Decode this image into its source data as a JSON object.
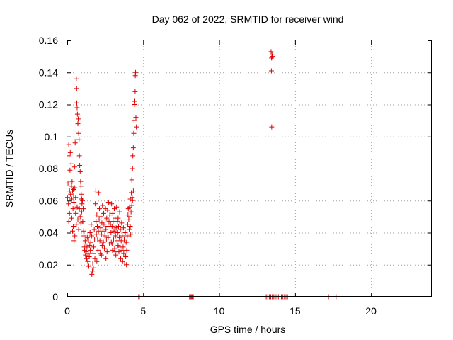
{
  "chart_data": {
    "type": "scatter",
    "title": "Day 062 of 2022, SRMTID for receiver wind",
    "xlabel": "GPS time / hours",
    "ylabel": "SRMTID / TECUs",
    "xlim": [
      0,
      24
    ],
    "ylim": [
      0,
      0.16
    ],
    "x_ticks": [
      0,
      5,
      10,
      15,
      20
    ],
    "x_tick_labels": [
      "0",
      "5",
      "10",
      "15",
      "20"
    ],
    "y_ticks": [
      0,
      0.02,
      0.04,
      0.06,
      0.08,
      0.1,
      0.12,
      0.14,
      0.16
    ],
    "y_tick_labels": [
      "0",
      "0.02",
      "0.04",
      "0.06",
      "0.08",
      "0.1",
      "0.12",
      "0.14",
      "0.16"
    ],
    "grid": true,
    "marker": "+",
    "marker_color": "#e00000",
    "series": [
      {
        "name": "SRMTID",
        "points": [
          [
            0.02,
            0.062
          ],
          [
            0.05,
            0.071
          ],
          [
            0.08,
            0.058
          ],
          [
            0.1,
            0.095
          ],
          [
            0.12,
            0.088
          ],
          [
            0.15,
            0.066
          ],
          [
            0.18,
            0.079
          ],
          [
            0.2,
            0.09
          ],
          [
            0.22,
            0.064
          ],
          [
            0.25,
            0.083
          ],
          [
            0.28,
            0.069
          ],
          [
            0.3,
            0.061
          ],
          [
            0.32,
            0.072
          ],
          [
            0.35,
            0.066
          ],
          [
            0.38,
            0.055
          ],
          [
            0.4,
            0.067
          ],
          [
            0.42,
            0.063
          ],
          [
            0.45,
            0.059
          ],
          [
            0.48,
            0.081
          ],
          [
            0.5,
            0.068
          ],
          [
            0.52,
            0.096
          ],
          [
            0.55,
            0.062
          ],
          [
            0.58,
            0.098
          ],
          [
            0.6,
            0.136
          ],
          [
            0.62,
            0.13
          ],
          [
            0.63,
            0.121
          ],
          [
            0.65,
            0.118
          ],
          [
            0.67,
            0.114
          ],
          [
            0.7,
            0.108
          ],
          [
            0.72,
            0.111
          ],
          [
            0.75,
            0.102
          ],
          [
            0.78,
            0.098
          ],
          [
            0.8,
            0.088
          ],
          [
            0.82,
            0.082
          ],
          [
            0.85,
            0.078
          ],
          [
            0.88,
            0.072
          ],
          [
            0.9,
            0.069
          ],
          [
            0.92,
            0.064
          ],
          [
            0.95,
            0.061
          ],
          [
            0.97,
            0.058
          ],
          [
            0.1,
            0.047
          ],
          [
            0.15,
            0.052
          ],
          [
            0.3,
            0.049
          ],
          [
            0.35,
            0.041
          ],
          [
            0.4,
            0.044
          ],
          [
            0.45,
            0.035
          ],
          [
            0.5,
            0.038
          ],
          [
            0.55,
            0.052
          ],
          [
            0.6,
            0.045
          ],
          [
            0.65,
            0.056
          ],
          [
            0.7,
            0.048
          ],
          [
            0.75,
            0.042
          ],
          [
            0.8,
            0.055
          ],
          [
            0.85,
            0.05
          ],
          [
            0.9,
            0.046
          ],
          [
            0.95,
            0.053
          ],
          [
            1.0,
            0.06
          ],
          [
            1.02,
            0.047
          ],
          [
            1.05,
            0.055
          ],
          [
            1.08,
            0.041
          ],
          [
            1.1,
            0.038
          ],
          [
            1.12,
            0.031
          ],
          [
            1.15,
            0.029
          ],
          [
            1.18,
            0.035
          ],
          [
            1.2,
            0.026
          ],
          [
            1.22,
            0.033
          ],
          [
            1.25,
            0.028
          ],
          [
            1.28,
            0.024
          ],
          [
            1.3,
            0.031
          ],
          [
            1.32,
            0.037
          ],
          [
            1.35,
            0.022
          ],
          [
            1.38,
            0.027
          ],
          [
            1.4,
            0.036
          ],
          [
            1.42,
            0.019
          ],
          [
            1.45,
            0.025
          ],
          [
            1.48,
            0.032
          ],
          [
            1.5,
            0.04
          ],
          [
            1.52,
            0.029
          ],
          [
            1.55,
            0.034
          ],
          [
            1.58,
            0.045
          ],
          [
            1.6,
            0.038
          ],
          [
            1.62,
            0.014
          ],
          [
            1.65,
            0.016
          ],
          [
            1.68,
            0.021
          ],
          [
            1.7,
            0.027
          ],
          [
            1.72,
            0.018
          ],
          [
            1.75,
            0.031
          ],
          [
            1.78,
            0.042
          ],
          [
            1.8,
            0.036
          ],
          [
            1.82,
            0.024
          ],
          [
            1.85,
            0.058
          ],
          [
            1.88,
            0.066
          ],
          [
            1.9,
            0.047
          ],
          [
            1.92,
            0.039
          ],
          [
            1.95,
            0.051
          ],
          [
            1.98,
            0.044
          ],
          [
            2.0,
            0.036
          ],
          [
            2.02,
            0.029
          ],
          [
            2.05,
            0.041
          ],
          [
            2.08,
            0.065
          ],
          [
            2.1,
            0.048
          ],
          [
            2.12,
            0.055
          ],
          [
            2.15,
            0.035
          ],
          [
            2.18,
            0.027
          ],
          [
            2.2,
            0.043
          ],
          [
            2.22,
            0.05
          ],
          [
            2.25,
            0.039
          ],
          [
            2.28,
            0.046
          ],
          [
            2.3,
            0.032
          ],
          [
            2.32,
            0.057
          ],
          [
            2.35,
            0.041
          ],
          [
            2.38,
            0.034
          ],
          [
            2.4,
            0.052
          ],
          [
            2.42,
            0.045
          ],
          [
            2.45,
            0.03
          ],
          [
            2.48,
            0.038
          ],
          [
            2.5,
            0.048
          ],
          [
            2.52,
            0.055
          ],
          [
            2.55,
            0.042
          ],
          [
            2.58,
            0.036
          ],
          [
            2.6,
            0.049
          ],
          [
            2.62,
            0.028
          ],
          [
            2.65,
            0.054
          ],
          [
            2.68,
            0.044
          ],
          [
            2.7,
            0.037
          ],
          [
            2.72,
            0.059
          ],
          [
            2.75,
            0.047
          ],
          [
            2.78,
            0.033
          ],
          [
            2.8,
            0.051
          ],
          [
            2.82,
            0.063
          ],
          [
            2.85,
            0.045
          ],
          [
            2.88,
            0.04
          ],
          [
            2.9,
            0.034
          ],
          [
            2.92,
            0.058
          ],
          [
            2.95,
            0.044
          ],
          [
            2.98,
            0.029
          ],
          [
            3.0,
            0.052
          ],
          [
            3.02,
            0.047
          ],
          [
            3.05,
            0.036
          ],
          [
            3.08,
            0.041
          ],
          [
            3.1,
            0.055
          ],
          [
            3.12,
            0.03
          ],
          [
            3.15,
            0.049
          ],
          [
            3.18,
            0.038
          ],
          [
            3.2,
            0.026
          ],
          [
            3.22,
            0.043
          ],
          [
            3.25,
            0.056
          ],
          [
            3.28,
            0.035
          ],
          [
            3.3,
            0.047
          ],
          [
            3.32,
            0.04
          ],
          [
            3.35,
            0.032
          ],
          [
            3.38,
            0.044
          ],
          [
            3.4,
            0.028
          ],
          [
            3.42,
            0.037
          ],
          [
            3.45,
            0.053
          ],
          [
            3.48,
            0.031
          ],
          [
            3.5,
            0.042
          ],
          [
            3.52,
            0.024
          ],
          [
            3.55,
            0.035
          ],
          [
            3.58,
            0.046
          ],
          [
            3.6,
            0.029
          ],
          [
            3.62,
            0.038
          ],
          [
            3.65,
            0.022
          ],
          [
            3.68,
            0.031
          ],
          [
            3.7,
            0.043
          ],
          [
            3.72,
            0.027
          ],
          [
            3.75,
            0.036
          ],
          [
            3.78,
            0.021
          ],
          [
            3.8,
            0.033
          ],
          [
            3.82,
            0.04
          ],
          [
            3.85,
            0.025
          ],
          [
            3.88,
            0.034
          ],
          [
            3.9,
            0.02
          ],
          [
            3.92,
            0.029
          ],
          [
            3.95,
            0.038
          ],
          [
            3.98,
            0.045
          ],
          [
            4.0,
            0.051
          ],
          [
            4.02,
            0.055
          ],
          [
            4.05,
            0.048
          ],
          [
            4.08,
            0.042
          ],
          [
            4.1,
            0.056
          ],
          [
            4.12,
            0.05
          ],
          [
            4.15,
            0.044
          ],
          [
            4.18,
            0.039
          ],
          [
            4.2,
            0.053
          ],
          [
            4.22,
            0.065
          ],
          [
            4.25,
            0.073
          ],
          [
            4.28,
            0.062
          ],
          [
            4.3,
            0.08
          ],
          [
            4.32,
            0.088
          ],
          [
            4.35,
            0.093
          ],
          [
            4.38,
            0.102
          ],
          [
            4.4,
            0.11
          ],
          [
            4.42,
            0.12
          ],
          [
            4.45,
            0.122
          ],
          [
            4.47,
            0.128
          ],
          [
            4.48,
            0.138
          ],
          [
            4.5,
            0.14
          ],
          [
            4.52,
            0.112
          ],
          [
            4.55,
            0.106
          ],
          [
            4.3,
            0.06
          ],
          [
            4.35,
            0.066
          ],
          [
            4.25,
            0.057
          ],
          [
            4.15,
            0.061
          ],
          [
            2.95,
            0.033
          ],
          [
            3.15,
            0.028
          ],
          [
            2.25,
            0.026
          ],
          [
            1.95,
            0.022
          ],
          [
            2.55,
            0.024
          ],
          [
            3.35,
            0.049
          ],
          [
            4.7,
            0.0
          ],
          [
            4.75,
            0.0
          ],
          [
            8.05,
            0.0
          ],
          [
            8.1,
            0.0
          ],
          [
            8.15,
            0.0
          ],
          [
            8.2,
            0.0
          ],
          [
            8.25,
            0.0
          ],
          [
            8.3,
            0.0
          ],
          [
            13.1,
            0.0
          ],
          [
            13.2,
            0.0
          ],
          [
            13.3,
            0.0
          ],
          [
            13.4,
            0.0
          ],
          [
            13.5,
            0.0
          ],
          [
            13.6,
            0.0
          ],
          [
            13.7,
            0.0
          ],
          [
            13.8,
            0.0
          ],
          [
            13.9,
            0.0
          ],
          [
            14.1,
            0.0
          ],
          [
            14.2,
            0.0
          ],
          [
            14.3,
            0.0
          ],
          [
            14.4,
            0.0
          ],
          [
            14.5,
            0.0
          ],
          [
            17.2,
            0.0
          ],
          [
            17.7,
            0.0
          ],
          [
            13.42,
            0.153
          ],
          [
            13.45,
            0.149
          ],
          [
            13.48,
            0.151
          ],
          [
            13.44,
            0.141
          ],
          [
            13.46,
            0.106
          ],
          [
            13.5,
            0.15
          ]
        ]
      }
    ]
  }
}
